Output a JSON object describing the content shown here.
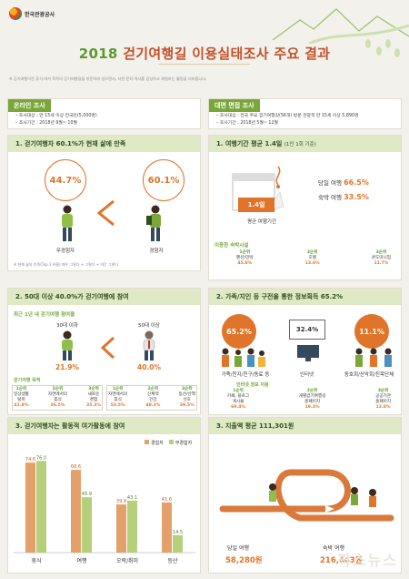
{
  "logo": {
    "text": "한국관광공사"
  },
  "header": {
    "year": "2018",
    "title": "걷기여행길 이용실태조사 주요 결과",
    "note": "※ 걷기여행이란 휴식·여가 목적의 걷기여행길을 방문하여 걸으면서, 자연·문화·역사를 감상하고 체험하는 활동을 의미합니다."
  },
  "online": {
    "label": "온라인 조사",
    "target": "– 조사대상 : 만 15세 이상 전국민(5,000명)",
    "period": "– 조사기간 : 2018년 9월~ 10월"
  },
  "offline": {
    "label": "대면 면접 조사",
    "target": "– 조사대상 : 전국 주요 걷기여행길(56개) 방문 관광객 만 15세 이상 5,890명",
    "period": "– 조사기간 : 2018년 5월~ 12월"
  },
  "sec1": {
    "title": "1. 걷기여행자 60.1%가 현재 삶에 만족",
    "non_walker_pct": "44.7%",
    "walker_pct": "60.1%",
    "non_walker_label": "무경험자",
    "walker_label": "경험자",
    "note": "※ 현재 삶의 만족(Top 3 비율) 매우 그렇다 + 그렇다 + 약간 그렇다"
  },
  "sec2": {
    "title": "2. 50대 이상 40.0%가 걷기여행에 참여",
    "subtitle": "최근 1년 내 걷기여행 참여율",
    "age1_label": "30대 이하",
    "age1_pct": "21.9%",
    "age2_label": "50대 이상",
    "age2_pct": "40.0%",
    "purpose_title": "걷기여행 목적",
    "age1_ranks": [
      {
        "rank": "1순위",
        "name": "일상생활\n탈피",
        "pct": "41.8%"
      },
      {
        "rank": "2순위",
        "name": "자연에서의\n휴식",
        "pct": "36.5%"
      },
      {
        "rank": "3순위",
        "name": "새로운\n경험",
        "pct": "35.3%"
      }
    ],
    "age2_ranks": [
      {
        "rank": "1순위",
        "name": "자연에서의\n휴식",
        "pct": "53.5%"
      },
      {
        "rank": "2순위",
        "name": "신체적\n건강",
        "pct": "48.3%"
      },
      {
        "rank": "3순위",
        "name": "등산/산책\n선호",
        "pct": "39.5%"
      }
    ]
  },
  "sec3": {
    "title": "3. 걷기여행자는 활동적 여가활동에 참여",
    "legend_walker": "경험자",
    "legend_nonwalker": "무경험자"
  },
  "rsec1": {
    "title": "1. 여행기간 평균 1.4일",
    "title_sub": "(1인 1회 기준)",
    "avg_days": "1.4일",
    "avg_label": "평균 여행기간",
    "day_trip_label": "당일 여행",
    "day_trip_pct": "66.5%",
    "overnight_label": "숙박 여행",
    "overnight_pct": "33.5%",
    "lodging_title": "이용한 숙박시설",
    "lodging": [
      {
        "rank": "1순위",
        "name": "펜션/민박",
        "pct": "45.8%"
      },
      {
        "rank": "2순위",
        "name": "호텔",
        "pct": "13.6%"
      },
      {
        "rank": "3순위",
        "name": "콘도미니엄",
        "pct": "11.7%"
      }
    ]
  },
  "rsec2": {
    "title": "2. 가족/지인 등 구전을 통한 정보획득 65.2%",
    "family_pct": "65.2%",
    "family_label": "가족/친지/친구/동료 등",
    "internet_pct": "32.4%",
    "internet_label": "인터넷",
    "club_pct": "11.1%",
    "club_label": "동호회/산악회/친목단체",
    "internet_info_title": "인터넷 정보 이용",
    "internet_ranks": [
      {
        "rank": "1순위",
        "name": "카페, 블로그\n게시물",
        "pct": "69.4%"
      },
      {
        "rank": "2순위",
        "name": "개별걷기여행길\n홈페이지",
        "pct": "19.3%"
      },
      {
        "rank": "3순위",
        "name": "공공기관\n홈페이지",
        "pct": "13.8%"
      }
    ]
  },
  "rsec3": {
    "title": "3. 지출액 평균 111,301원",
    "day_label": "당일 여행",
    "day_amount": "58,280원",
    "overnight_label": "숙박 여행",
    "overnight_amount": "216,643원"
  },
  "watermark": "팍스뉴스",
  "chart_data": {
    "type": "bar",
    "title": "3. 걷기여행자는 활동적 여가활동에 참여",
    "categories": [
      "휴식",
      "여행",
      "오락/취미",
      "등산"
    ],
    "series": [
      {
        "name": "경험자",
        "values": [
          74.6,
          68.6,
          39.9,
          41.6
        ],
        "color": "#e3a06b"
      },
      {
        "name": "무경험자",
        "values": [
          76.0,
          45.9,
          43.1,
          14.5
        ],
        "color": "#b5cf7a"
      }
    ],
    "ylim": [
      0,
      80
    ],
    "legend": "top-right"
  }
}
